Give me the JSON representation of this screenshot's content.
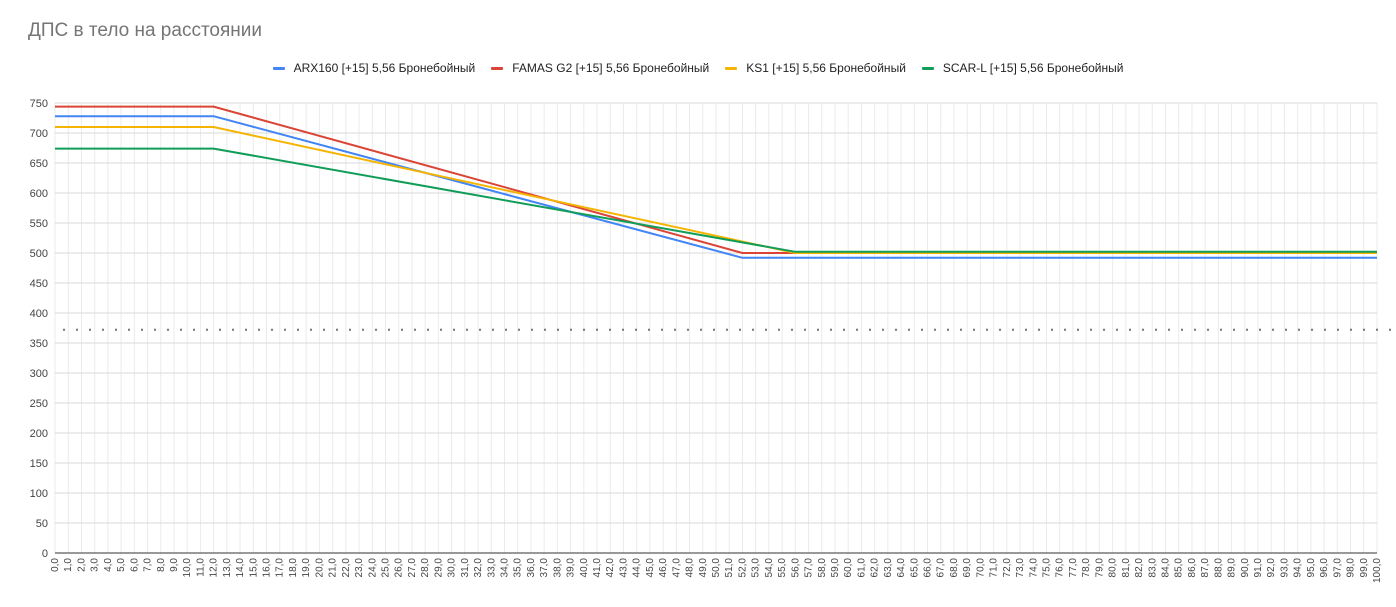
{
  "chart_data": {
    "type": "line",
    "title": "ДПС в тело на расстоянии",
    "xlabel": "",
    "ylabel": "",
    "x_range": [
      0,
      100
    ],
    "x_step": 1,
    "x_tick_format": "comma-1-decimal",
    "ylim": [
      0,
      750
    ],
    "y_ticks": [
      0,
      50,
      100,
      150,
      200,
      250,
      300,
      350,
      400,
      450,
      500,
      550,
      600,
      650,
      700,
      750
    ],
    "grid": true,
    "legend_position": "top",
    "reference_line": {
      "y": 372,
      "style": "dotted",
      "color": "#757575"
    },
    "series": [
      {
        "name": "ARX160 [+15] 5,56 Бронебойный",
        "color": "#4285f4",
        "points": [
          [
            0,
            728
          ],
          [
            12,
            728
          ],
          [
            52,
            492
          ],
          [
            100,
            492
          ]
        ]
      },
      {
        "name": "FAMAS G2 [+15] 5,56 Бронебойный",
        "color": "#db4437",
        "points": [
          [
            0,
            744
          ],
          [
            12,
            744
          ],
          [
            52,
            500
          ],
          [
            100,
            500
          ]
        ]
      },
      {
        "name": "KS1 [+15] 5,56 Бронебойный",
        "color": "#f4b400",
        "points": [
          [
            0,
            710
          ],
          [
            12,
            710
          ],
          [
            56,
            500
          ],
          [
            100,
            500
          ]
        ]
      },
      {
        "name": "SCAR-L [+15] 5,56 Бронебойный",
        "color": "#0f9d58",
        "points": [
          [
            0,
            674
          ],
          [
            12,
            674
          ],
          [
            56,
            502
          ],
          [
            100,
            502
          ]
        ]
      }
    ]
  }
}
